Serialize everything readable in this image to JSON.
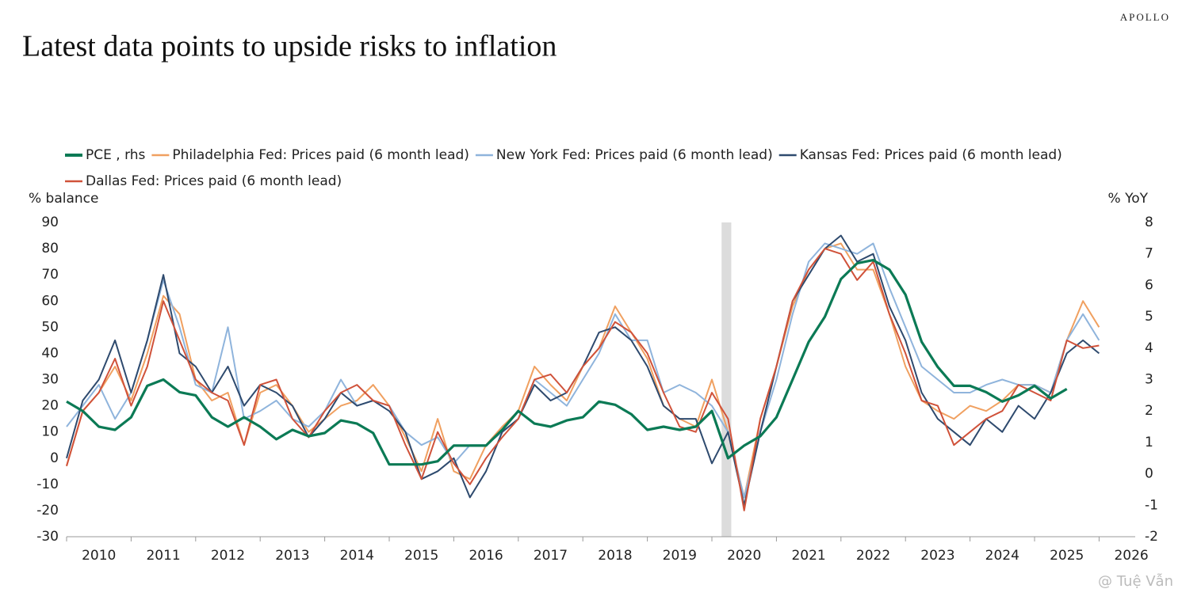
{
  "chart_data": {
    "type": "line",
    "title": "Latest data points to upside risks to inflation",
    "brand": "APOLLO",
    "watermark": "@ Tuệ Vẫn",
    "ylabel": "% balance",
    "y2label": "% YoY",
    "legend": "top",
    "shaded_region": [
      2020.15,
      2020.3
    ],
    "xlim": [
      2010,
      2026.56
    ],
    "xticks": [
      2010,
      2011,
      2012,
      2013,
      2014,
      2015,
      2016,
      2017,
      2018,
      2019,
      2020,
      2021,
      2022,
      2023,
      2024,
      2025,
      2026
    ],
    "ylim": [
      -30,
      90
    ],
    "yticks": [
      -30,
      -20,
      -10,
      0,
      10,
      20,
      30,
      40,
      50,
      60,
      70,
      80,
      90
    ],
    "y2lim": [
      -2,
      8
    ],
    "y2ticks": [
      -2,
      -1,
      0,
      1,
      2,
      3,
      4,
      5,
      6,
      7,
      8
    ],
    "x": [
      2010,
      2010.25,
      2010.5,
      2010.75,
      2011,
      2011.25,
      2011.5,
      2011.75,
      2012,
      2012.25,
      2012.5,
      2012.75,
      2013,
      2013.25,
      2013.5,
      2013.75,
      2014,
      2014.25,
      2014.5,
      2014.75,
      2015,
      2015.25,
      2015.5,
      2015.75,
      2016,
      2016.25,
      2016.5,
      2016.75,
      2017,
      2017.25,
      2017.5,
      2017.75,
      2018,
      2018.25,
      2018.5,
      2018.75,
      2019,
      2019.25,
      2019.5,
      2019.75,
      2020,
      2020.25,
      2020.5,
      2020.75,
      2021,
      2021.25,
      2021.5,
      2021.75,
      2022,
      2022.25,
      2022.5,
      2022.75,
      2023,
      2023.25,
      2023.5,
      2023.75,
      2024,
      2024.25,
      2024.5,
      2024.75,
      2025,
      2025.25,
      2025.5,
      2025.75,
      2026
    ],
    "series": [
      {
        "name": "PCE , rhs",
        "color": "#0b7a55",
        "axis": "y2",
        "width": 3.2,
        "values": [
          2.3,
          2.0,
          1.5,
          1.4,
          1.8,
          2.8,
          3.0,
          2.6,
          2.5,
          1.8,
          1.5,
          1.8,
          1.5,
          1.1,
          1.4,
          1.2,
          1.3,
          1.7,
          1.6,
          1.3,
          0.3,
          0.3,
          0.3,
          0.4,
          0.9,
          0.9,
          0.9,
          1.4,
          2.0,
          1.6,
          1.5,
          1.7,
          1.8,
          2.3,
          2.2,
          1.9,
          1.4,
          1.5,
          1.4,
          1.5,
          2.0,
          0.5,
          0.9,
          1.2,
          1.8,
          3.0,
          4.2,
          5.0,
          6.2,
          6.7,
          6.8,
          6.5,
          5.7,
          4.2,
          3.4,
          2.8,
          2.8,
          2.6,
          2.3,
          2.5,
          2.8,
          2.4,
          2.7,
          null,
          null
        ]
      },
      {
        "name": "Philadelphia Fed: Prices paid (6 month lead)",
        "color": "#f0a060",
        "width": 2,
        "values": [
          -3,
          18,
          25,
          35,
          22,
          40,
          62,
          55,
          30,
          22,
          25,
          5,
          25,
          28,
          20,
          10,
          15,
          20,
          22,
          28,
          20,
          8,
          -5,
          15,
          -5,
          -8,
          5,
          12,
          18,
          35,
          28,
          22,
          35,
          42,
          58,
          48,
          38,
          20,
          15,
          12,
          30,
          10,
          -15,
          15,
          35,
          58,
          72,
          80,
          82,
          72,
          72,
          55,
          35,
          22,
          18,
          15,
          20,
          18,
          22,
          28,
          28,
          25,
          45,
          60,
          50
        ]
      },
      {
        "name": "New York Fed: Prices paid (6 month lead)",
        "color": "#8fb4dc",
        "width": 2,
        "values": [
          12,
          20,
          28,
          15,
          25,
          45,
          68,
          50,
          28,
          25,
          50,
          15,
          18,
          22,
          15,
          12,
          18,
          30,
          20,
          22,
          20,
          10,
          5,
          8,
          -2,
          5,
          5,
          10,
          15,
          30,
          25,
          20,
          30,
          40,
          55,
          45,
          45,
          25,
          28,
          25,
          20,
          10,
          -15,
          10,
          30,
          55,
          75,
          82,
          80,
          78,
          82,
          65,
          50,
          35,
          30,
          25,
          25,
          28,
          30,
          28,
          28,
          25,
          45,
          55,
          45
        ]
      },
      {
        "name": "Kansas Fed: Prices paid (6 month lead)",
        "color": "#2e4a6e",
        "width": 2,
        "values": [
          0,
          22,
          30,
          45,
          25,
          45,
          70,
          40,
          35,
          25,
          35,
          20,
          28,
          25,
          20,
          8,
          15,
          25,
          20,
          22,
          18,
          10,
          -8,
          -5,
          0,
          -15,
          -5,
          10,
          15,
          28,
          22,
          25,
          35,
          48,
          50,
          45,
          35,
          20,
          15,
          15,
          -2,
          10,
          -18,
          10,
          35,
          60,
          70,
          80,
          85,
          75,
          78,
          58,
          45,
          25,
          15,
          10,
          5,
          15,
          10,
          20,
          15,
          25,
          40,
          45,
          40
        ]
      },
      {
        "name": "Dallas Fed: Prices paid (6 month lead)",
        "color": "#d0523a",
        "width": 2,
        "values": [
          -3,
          18,
          25,
          38,
          20,
          35,
          60,
          45,
          30,
          25,
          22,
          5,
          28,
          30,
          15,
          8,
          18,
          25,
          28,
          22,
          20,
          5,
          -8,
          10,
          -2,
          -10,
          0,
          8,
          15,
          30,
          32,
          25,
          35,
          42,
          52,
          48,
          40,
          25,
          12,
          10,
          25,
          15,
          -20,
          15,
          35,
          60,
          72,
          80,
          78,
          68,
          75,
          55,
          40,
          22,
          20,
          5,
          10,
          15,
          18,
          28,
          25,
          22,
          45,
          42,
          43
        ]
      }
    ]
  }
}
